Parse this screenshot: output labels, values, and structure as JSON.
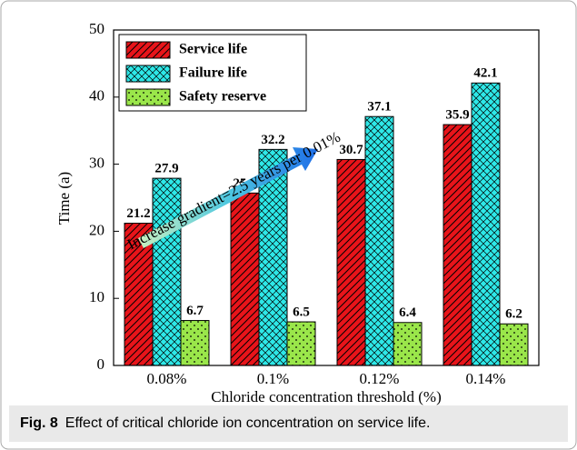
{
  "chart_data": {
    "type": "bar",
    "categories": [
      "0.08%",
      "0.1%",
      "0.12%",
      "0.14%"
    ],
    "series": [
      {
        "name": "Service life",
        "color": "#e8141a",
        "pattern": "hatch",
        "values": [
          21.2,
          25.7,
          30.7,
          35.9
        ]
      },
      {
        "name": "Failure life",
        "color": "#2ee8e8",
        "pattern": "crosshatch",
        "values": [
          27.9,
          32.2,
          37.1,
          42.1
        ]
      },
      {
        "name": "Safety reserve",
        "color": "#9ae64a",
        "pattern": "dots",
        "values": [
          6.7,
          6.5,
          6.4,
          6.2
        ]
      }
    ],
    "ylim": [
      0,
      50
    ],
    "yticks": [
      0,
      10,
      20,
      30,
      40,
      50
    ],
    "ylabel": "Time (a)",
    "xlabel": "Chloride concentration threshold (%)",
    "annotation": "Increase gradient=2.5 years per 0.01%",
    "legend": "upper left"
  },
  "caption": {
    "label": "Fig. 8",
    "text": "Effect of critical chloride ion concentration on service life."
  }
}
